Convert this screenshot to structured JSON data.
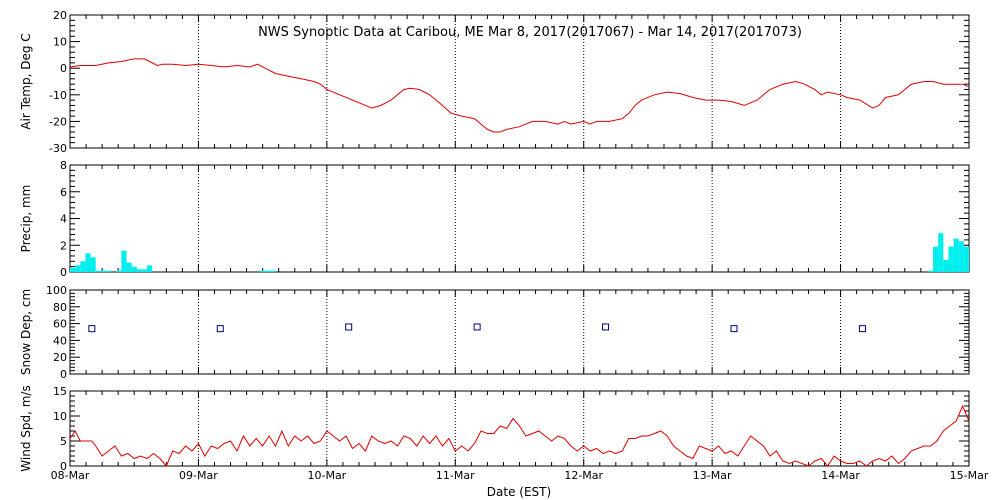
{
  "title": "NWS Synoptic Data at Caribou, ME   Mar  8, 2017(2017067) - Mar 14, 2017(2017073)",
  "xlabel": "Date (EST)",
  "x_ticks": [
    "08-Mar",
    "09-Mar",
    "10-Mar",
    "11-Mar",
    "12-Mar",
    "13-Mar",
    "14-Mar",
    "15-Mar"
  ],
  "colors": {
    "temp": "#dd0000",
    "precip": "#00eeee",
    "snow": "#000080",
    "wind": "#dd0000",
    "grid": "#000000"
  },
  "chart_data": [
    {
      "type": "line",
      "ylabel": "Air Temp, Deg C",
      "ylim": [
        -30,
        20
      ],
      "yticks": [
        -30,
        -20,
        -10,
        0,
        10,
        20
      ],
      "x_unit": "days since 08-Mar 00:00 EST",
      "series": [
        {
          "values": [
            [
              0,
              0.5
            ],
            [
              0.08,
              1
            ],
            [
              0.2,
              1
            ],
            [
              0.3,
              2
            ],
            [
              0.4,
              2.5
            ],
            [
              0.5,
              3.5
            ],
            [
              0.58,
              3.5
            ],
            [
              0.62,
              2.5
            ],
            [
              0.68,
              1
            ],
            [
              0.72,
              1.5
            ],
            [
              0.8,
              1.5
            ],
            [
              0.9,
              1
            ],
            [
              1.0,
              1.5
            ],
            [
              1.1,
              1
            ],
            [
              1.2,
              0.5
            ],
            [
              1.3,
              1
            ],
            [
              1.4,
              0.5
            ],
            [
              1.46,
              1.5
            ],
            [
              1.52,
              0
            ],
            [
              1.6,
              -2
            ],
            [
              1.7,
              -3
            ],
            [
              1.8,
              -4
            ],
            [
              1.9,
              -5
            ],
            [
              1.95,
              -6
            ],
            [
              2.0,
              -8
            ],
            [
              2.1,
              -10
            ],
            [
              2.2,
              -12
            ],
            [
              2.3,
              -14
            ],
            [
              2.35,
              -15
            ],
            [
              2.42,
              -14
            ],
            [
              2.5,
              -12
            ],
            [
              2.55,
              -10
            ],
            [
              2.6,
              -8
            ],
            [
              2.65,
              -7.5
            ],
            [
              2.72,
              -8
            ],
            [
              2.8,
              -10
            ],
            [
              2.9,
              -14
            ],
            [
              2.97,
              -17
            ],
            [
              3.05,
              -18
            ],
            [
              3.15,
              -19
            ],
            [
              3.2,
              -21
            ],
            [
              3.25,
              -23
            ],
            [
              3.3,
              -24
            ],
            [
              3.35,
              -24
            ],
            [
              3.4,
              -23
            ],
            [
              3.5,
              -22
            ],
            [
              3.6,
              -20
            ],
            [
              3.7,
              -20
            ],
            [
              3.8,
              -21
            ],
            [
              3.85,
              -20
            ],
            [
              3.9,
              -21
            ],
            [
              4.0,
              -20
            ],
            [
              4.05,
              -21
            ],
            [
              4.1,
              -20
            ],
            [
              4.2,
              -20
            ],
            [
              4.3,
              -19
            ],
            [
              4.35,
              -17
            ],
            [
              4.4,
              -14
            ],
            [
              4.45,
              -12
            ],
            [
              4.55,
              -10
            ],
            [
              4.65,
              -9
            ],
            [
              4.75,
              -9.5
            ],
            [
              4.85,
              -11
            ],
            [
              4.95,
              -12
            ],
            [
              5.05,
              -12
            ],
            [
              5.15,
              -12.5
            ],
            [
              5.25,
              -14
            ],
            [
              5.35,
              -12
            ],
            [
              5.45,
              -8
            ],
            [
              5.55,
              -6
            ],
            [
              5.65,
              -5
            ],
            [
              5.72,
              -6
            ],
            [
              5.8,
              -8
            ],
            [
              5.85,
              -10
            ],
            [
              5.9,
              -9
            ],
            [
              6.0,
              -10
            ],
            [
              6.05,
              -11
            ],
            [
              6.15,
              -12
            ],
            [
              6.25,
              -15
            ],
            [
              6.3,
              -14
            ],
            [
              6.35,
              -11
            ],
            [
              6.45,
              -10
            ],
            [
              6.55,
              -6
            ],
            [
              6.65,
              -5
            ],
            [
              6.72,
              -5
            ],
            [
              6.8,
              -6
            ],
            [
              6.85,
              -6
            ],
            [
              6.95,
              -6
            ],
            [
              7.0,
              -7
            ]
          ]
        }
      ]
    },
    {
      "type": "bar",
      "ylabel": "Precip, mm",
      "ylim": [
        0,
        8
      ],
      "yticks": [
        0,
        2,
        4,
        6,
        8
      ],
      "x_unit": "days since 08-Mar 00:00 EST",
      "bar_width": 0.04,
      "values": [
        [
          0.02,
          0.3
        ],
        [
          0.06,
          0.5
        ],
        [
          0.1,
          0.8
        ],
        [
          0.14,
          1.4
        ],
        [
          0.18,
          1.1
        ],
        [
          0.22,
          0.1
        ],
        [
          0.26,
          0.1
        ],
        [
          0.3,
          0.1
        ],
        [
          0.38,
          0.1
        ],
        [
          0.42,
          1.6
        ],
        [
          0.46,
          0.7
        ],
        [
          0.5,
          0.4
        ],
        [
          0.54,
          0.2
        ],
        [
          0.58,
          0.2
        ],
        [
          0.62,
          0.5
        ],
        [
          1.5,
          0.1
        ],
        [
          1.54,
          0.1
        ],
        [
          1.58,
          0.1
        ],
        [
          6.7,
          0.1
        ],
        [
          6.74,
          1.9
        ],
        [
          6.78,
          2.9
        ],
        [
          6.82,
          0.9
        ],
        [
          6.86,
          1.9
        ],
        [
          6.9,
          2.5
        ],
        [
          6.94,
          2.3
        ],
        [
          6.98,
          1.9
        ]
      ]
    },
    {
      "type": "scatter",
      "ylabel": "Snow Dep, cm",
      "ylim": [
        0,
        100
      ],
      "yticks": [
        0,
        20,
        40,
        60,
        80,
        100
      ],
      "x_unit": "days since 08-Mar 00:00 EST",
      "values": [
        [
          0.17,
          54
        ],
        [
          1.17,
          54
        ],
        [
          2.17,
          56
        ],
        [
          3.17,
          56
        ],
        [
          4.17,
          56
        ],
        [
          5.17,
          54
        ],
        [
          6.17,
          54
        ]
      ]
    },
    {
      "type": "line",
      "ylabel": "Wind Spd, m/s",
      "ylim": [
        0,
        15
      ],
      "yticks": [
        0,
        5,
        10,
        15
      ],
      "x_unit": "days since 08-Mar 00:00 EST",
      "series": [
        {
          "values": [
            [
              0,
              5.5
            ],
            [
              0.04,
              7
            ],
            [
              0.08,
              5
            ],
            [
              0.12,
              5
            ],
            [
              0.17,
              5
            ],
            [
              0.2,
              4
            ],
            [
              0.25,
              2
            ],
            [
              0.3,
              3
            ],
            [
              0.35,
              4
            ],
            [
              0.4,
              2
            ],
            [
              0.45,
              2.5
            ],
            [
              0.5,
              1.5
            ],
            [
              0.55,
              2
            ],
            [
              0.6,
              1.5
            ],
            [
              0.65,
              2.5
            ],
            [
              0.7,
              1.5
            ],
            [
              0.75,
              0
            ],
            [
              0.8,
              3
            ],
            [
              0.85,
              2.5
            ],
            [
              0.9,
              4
            ],
            [
              0.95,
              3
            ],
            [
              1.0,
              4.5
            ],
            [
              1.05,
              2
            ],
            [
              1.1,
              4
            ],
            [
              1.15,
              3.5
            ],
            [
              1.2,
              4.5
            ],
            [
              1.25,
              5
            ],
            [
              1.3,
              3
            ],
            [
              1.35,
              6
            ],
            [
              1.4,
              4
            ],
            [
              1.45,
              5.5
            ],
            [
              1.5,
              4
            ],
            [
              1.55,
              6
            ],
            [
              1.6,
              4
            ],
            [
              1.65,
              7
            ],
            [
              1.7,
              4
            ],
            [
              1.75,
              6
            ],
            [
              1.8,
              5
            ],
            [
              1.85,
              6
            ],
            [
              1.9,
              4.5
            ],
            [
              1.95,
              5
            ],
            [
              2.0,
              7
            ],
            [
              2.05,
              6
            ],
            [
              2.1,
              5
            ],
            [
              2.15,
              6
            ],
            [
              2.2,
              3.5
            ],
            [
              2.25,
              4.5
            ],
            [
              2.3,
              3
            ],
            [
              2.35,
              6
            ],
            [
              2.4,
              5
            ],
            [
              2.45,
              4.5
            ],
            [
              2.5,
              5
            ],
            [
              2.55,
              4
            ],
            [
              2.6,
              6
            ],
            [
              2.65,
              5.5
            ],
            [
              2.7,
              4
            ],
            [
              2.75,
              6
            ],
            [
              2.8,
              4.5
            ],
            [
              2.85,
              6
            ],
            [
              2.9,
              4
            ],
            [
              2.95,
              5.5
            ],
            [
              3.0,
              3
            ],
            [
              3.05,
              4
            ],
            [
              3.1,
              3
            ],
            [
              3.15,
              4.5
            ],
            [
              3.2,
              7
            ],
            [
              3.25,
              6.5
            ],
            [
              3.3,
              6.5
            ],
            [
              3.35,
              8
            ],
            [
              3.4,
              7.5
            ],
            [
              3.45,
              9.5
            ],
            [
              3.5,
              8
            ],
            [
              3.55,
              6
            ],
            [
              3.6,
              6.5
            ],
            [
              3.65,
              7
            ],
            [
              3.7,
              6
            ],
            [
              3.75,
              5
            ],
            [
              3.8,
              6
            ],
            [
              3.85,
              5.5
            ],
            [
              3.9,
              4
            ],
            [
              3.95,
              3
            ],
            [
              4.0,
              4
            ],
            [
              4.05,
              3
            ],
            [
              4.1,
              3.5
            ],
            [
              4.15,
              2.5
            ],
            [
              4.2,
              3
            ],
            [
              4.25,
              2.5
            ],
            [
              4.3,
              3
            ],
            [
              4.35,
              5.5
            ],
            [
              4.4,
              5.5
            ],
            [
              4.45,
              6
            ],
            [
              4.5,
              6
            ],
            [
              4.55,
              6.5
            ],
            [
              4.6,
              7
            ],
            [
              4.65,
              6
            ],
            [
              4.7,
              4
            ],
            [
              4.75,
              3
            ],
            [
              4.8,
              2
            ],
            [
              4.85,
              1.5
            ],
            [
              4.9,
              4
            ],
            [
              4.95,
              3.5
            ],
            [
              5.0,
              3
            ],
            [
              5.05,
              4
            ],
            [
              5.1,
              2.5
            ],
            [
              5.15,
              3
            ],
            [
              5.2,
              2
            ],
            [
              5.25,
              4
            ],
            [
              5.3,
              6
            ],
            [
              5.35,
              5
            ],
            [
              5.4,
              4
            ],
            [
              5.45,
              2
            ],
            [
              5.5,
              3
            ],
            [
              5.55,
              1
            ],
            [
              5.6,
              0.5
            ],
            [
              5.65,
              1
            ],
            [
              5.7,
              0.5
            ],
            [
              5.75,
              0
            ],
            [
              5.8,
              1
            ],
            [
              5.85,
              1.5
            ],
            [
              5.9,
              0
            ],
            [
              5.95,
              2
            ],
            [
              6.0,
              1
            ],
            [
              6.05,
              0.5
            ],
            [
              6.1,
              0.5
            ],
            [
              6.15,
              1
            ],
            [
              6.2,
              0
            ],
            [
              6.25,
              1
            ],
            [
              6.3,
              1.5
            ],
            [
              6.35,
              1
            ],
            [
              6.4,
              2
            ],
            [
              6.45,
              0.5
            ],
            [
              6.5,
              1.5
            ],
            [
              6.55,
              3
            ],
            [
              6.6,
              3.5
            ],
            [
              6.65,
              4
            ],
            [
              6.7,
              4
            ],
            [
              6.75,
              5
            ],
            [
              6.8,
              7
            ],
            [
              6.85,
              8
            ],
            [
              6.9,
              9
            ],
            [
              6.95,
              12
            ],
            [
              7.0,
              9
            ]
          ]
        }
      ]
    }
  ]
}
